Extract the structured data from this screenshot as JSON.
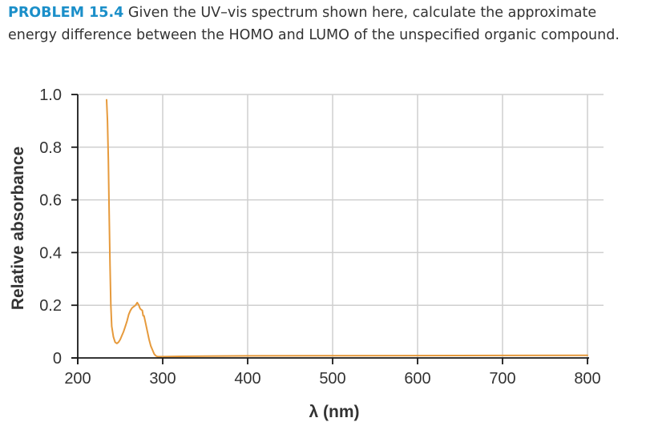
{
  "problem": {
    "label": "PROBLEM 15.4",
    "text": "Given the UV–vis spectrum shown here, calculate the approximate energy difference between the HOMO and LUMO of the unspecified organic compound."
  },
  "colors": {
    "problem_label": "#1b8fc9",
    "curve": "#e69a3c",
    "grid": "#cfcfcf",
    "axis": "#1a1a1a",
    "text": "#333333"
  },
  "chart_data": {
    "type": "line",
    "title": "",
    "xlabel": "λ (nm)",
    "ylabel": "Relative absorbance",
    "xlim": [
      200,
      800
    ],
    "ylim": [
      0,
      1.0
    ],
    "xticks": [
      200,
      300,
      400,
      500,
      600,
      700,
      800
    ],
    "yticks": [
      0,
      0.2,
      0.4,
      0.6,
      0.8,
      1.0
    ],
    "xtick_labels": [
      "200",
      "300",
      "400",
      "500",
      "600",
      "700",
      "800"
    ],
    "ytick_labels": [
      "0",
      "0.2",
      "0.4",
      "0.6",
      "0.8",
      "1.0"
    ],
    "grid": true,
    "series": [
      {
        "color": "#e69a3c",
        "x": [
          234,
          235,
          236,
          237,
          238,
          239,
          240,
          242,
          244,
          246,
          248,
          250,
          252,
          254,
          256,
          258,
          260,
          262,
          264,
          266,
          268,
          270,
          272,
          273,
          274,
          276,
          277,
          278,
          280,
          282,
          284,
          286,
          288,
          290,
          292,
          294,
          296,
          300,
          320,
          400,
          800
        ],
        "y": [
          0.98,
          0.9,
          0.75,
          0.55,
          0.35,
          0.2,
          0.12,
          0.08,
          0.06,
          0.055,
          0.06,
          0.07,
          0.085,
          0.1,
          0.12,
          0.14,
          0.165,
          0.18,
          0.19,
          0.195,
          0.2,
          0.21,
          0.2,
          0.19,
          0.185,
          0.18,
          0.16,
          0.16,
          0.13,
          0.1,
          0.07,
          0.045,
          0.03,
          0.015,
          0.008,
          0.005,
          0.005,
          0.005,
          0.006,
          0.008,
          0.01
        ]
      }
    ]
  }
}
